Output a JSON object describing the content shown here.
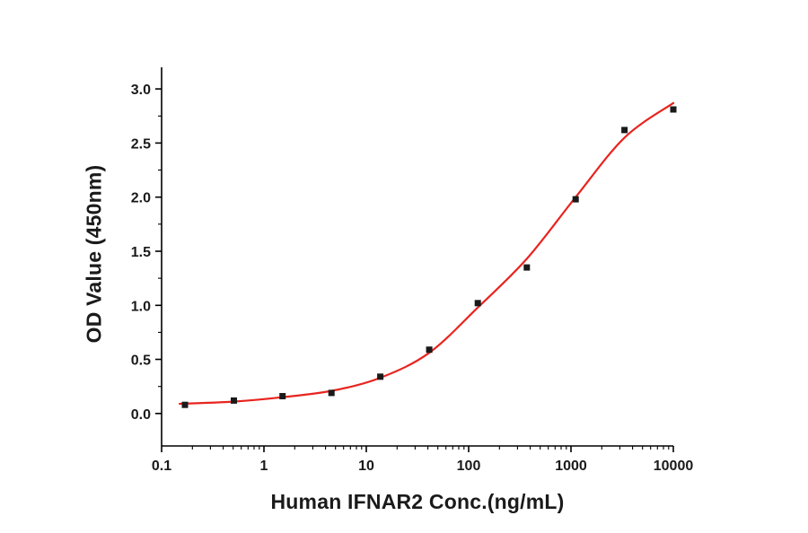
{
  "chart_data": {
    "type": "scatter",
    "title": "",
    "xlabel": "Human IFNAR2 Conc.(ng/mL)",
    "ylabel": "OD Value (450nm)",
    "x_scale": "log",
    "xlim": [
      0.1,
      10000
    ],
    "ylim": [
      -0.3,
      3.2
    ],
    "x_ticks": [
      0.1,
      1,
      10,
      100,
      1000,
      10000
    ],
    "x_tick_labels": [
      "0.1",
      "1",
      "10",
      "100",
      "1000",
      "10000"
    ],
    "y_ticks": [
      0.0,
      0.5,
      1.0,
      1.5,
      2.0,
      2.5,
      3.0
    ],
    "y_tick_labels": [
      "0.0",
      "0.5",
      "1.0",
      "1.5",
      "2.0",
      "2.5",
      "3.0"
    ],
    "grid": "off",
    "legend": "none",
    "points": [
      {
        "x": 0.169,
        "y": 0.08
      },
      {
        "x": 0.508,
        "y": 0.12
      },
      {
        "x": 1.52,
        "y": 0.16
      },
      {
        "x": 4.57,
        "y": 0.19
      },
      {
        "x": 13.7,
        "y": 0.34
      },
      {
        "x": 41.2,
        "y": 0.59
      },
      {
        "x": 123,
        "y": 1.02
      },
      {
        "x": 370,
        "y": 1.35
      },
      {
        "x": 1111,
        "y": 1.98
      },
      {
        "x": 3333,
        "y": 2.62
      },
      {
        "x": 10000,
        "y": 2.81
      }
    ],
    "fit_curve": [
      {
        "x": 0.15,
        "y": 0.09
      },
      {
        "x": 0.5,
        "y": 0.11
      },
      {
        "x": 1.5,
        "y": 0.15
      },
      {
        "x": 4.6,
        "y": 0.21
      },
      {
        "x": 13.7,
        "y": 0.33
      },
      {
        "x": 41,
        "y": 0.56
      },
      {
        "x": 123,
        "y": 0.98
      },
      {
        "x": 370,
        "y": 1.43
      },
      {
        "x": 1111,
        "y": 2.0
      },
      {
        "x": 3333,
        "y": 2.55
      },
      {
        "x": 10000,
        "y": 2.87
      }
    ],
    "point_color": "#1a1a1a",
    "curve_color": "#e8241f",
    "axis_color": "#000000"
  }
}
